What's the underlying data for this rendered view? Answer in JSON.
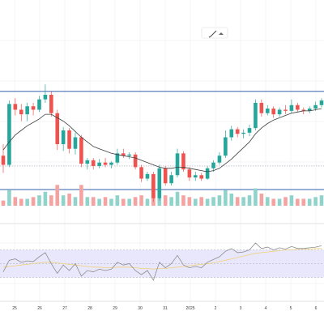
{
  "toolbar": {
    "icons": [
      "pencil-icon",
      "caret-up-icon"
    ]
  },
  "colors": {
    "up": "#26a69a",
    "down": "#ef5350",
    "up_volume": "#8fd3cb",
    "down_volume": "#f5a3a1",
    "range_line": "#5b7fbd",
    "moving_average": "#3f3f3f",
    "rsi_line": "#8e8e8e",
    "rsi_ma": "#f0d27a",
    "rsi_band": "#e9e7fb",
    "grid": "#eeeeee"
  },
  "x_axis": {
    "labels": [
      "25",
      "26",
      "27",
      "28",
      "29",
      "30",
      "31",
      "2025",
      "2",
      "3",
      "4",
      "5",
      "6"
    ]
  },
  "chart_data": {
    "type": "candlestick",
    "title": "",
    "xlabel": "",
    "ylabel": "",
    "grid": true,
    "annotations": [
      "upper range line",
      "lower range line",
      "dotted support line"
    ],
    "candles": [
      {
        "o": 36,
        "h": 37,
        "l": 34.5,
        "c": 35.2
      },
      {
        "o": 35.2,
        "h": 40.8,
        "l": 35,
        "c": 40.5
      },
      {
        "o": 40.5,
        "h": 41,
        "l": 39.5,
        "c": 40
      },
      {
        "o": 40,
        "h": 40.5,
        "l": 39,
        "c": 39.6
      },
      {
        "o": 39.6,
        "h": 40.6,
        "l": 39,
        "c": 40.3
      },
      {
        "o": 40.3,
        "h": 40.6,
        "l": 39.5,
        "c": 40
      },
      {
        "o": 40,
        "h": 41.2,
        "l": 39.8,
        "c": 40.9
      },
      {
        "o": 40.9,
        "h": 42.2,
        "l": 40.6,
        "c": 41.3
      },
      {
        "o": 41.3,
        "h": 41.6,
        "l": 39.4,
        "c": 39.7
      },
      {
        "o": 39.7,
        "h": 40,
        "l": 36.5,
        "c": 37
      },
      {
        "o": 37,
        "h": 38.5,
        "l": 36.4,
        "c": 38.2
      },
      {
        "o": 38.2,
        "h": 38.4,
        "l": 36.2,
        "c": 36.6
      },
      {
        "o": 36.6,
        "h": 38,
        "l": 36.1,
        "c": 37.6
      },
      {
        "o": 37.6,
        "h": 37.8,
        "l": 35,
        "c": 35.3
      },
      {
        "o": 35.3,
        "h": 35.8,
        "l": 34.8,
        "c": 35.6
      },
      {
        "o": 35.6,
        "h": 35.8,
        "l": 34.8,
        "c": 35.1
      },
      {
        "o": 35.1,
        "h": 35.7,
        "l": 34.9,
        "c": 35.4
      },
      {
        "o": 35.4,
        "h": 35.8,
        "l": 35,
        "c": 35.2
      },
      {
        "o": 35.2,
        "h": 35.5,
        "l": 34.9,
        "c": 35.4
      },
      {
        "o": 35.4,
        "h": 36.6,
        "l": 35.2,
        "c": 36.2
      },
      {
        "o": 36.2,
        "h": 36.6,
        "l": 35.8,
        "c": 36
      },
      {
        "o": 36,
        "h": 36.3,
        "l": 35.7,
        "c": 36.1
      },
      {
        "o": 36.1,
        "h": 36.3,
        "l": 34.8,
        "c": 35
      },
      {
        "o": 35,
        "h": 35.2,
        "l": 33.7,
        "c": 34
      },
      {
        "o": 34,
        "h": 34.6,
        "l": 33.8,
        "c": 34.4
      },
      {
        "o": 34.4,
        "h": 34.6,
        "l": 32,
        "c": 32.3
      },
      {
        "o": 32.3,
        "h": 35.2,
        "l": 32.1,
        "c": 34.9
      },
      {
        "o": 34.9,
        "h": 35.1,
        "l": 33.4,
        "c": 33.6
      },
      {
        "o": 33.6,
        "h": 34.6,
        "l": 33.4,
        "c": 34.3
      },
      {
        "o": 34.3,
        "h": 36.6,
        "l": 34.1,
        "c": 36.2
      },
      {
        "o": 36.2,
        "h": 36.4,
        "l": 34.6,
        "c": 34.8
      },
      {
        "o": 34.8,
        "h": 35,
        "l": 33.8,
        "c": 34.1
      },
      {
        "o": 34.1,
        "h": 34.6,
        "l": 33.8,
        "c": 34.3
      },
      {
        "o": 34.3,
        "h": 34.5,
        "l": 33.8,
        "c": 34
      },
      {
        "o": 34,
        "h": 35.1,
        "l": 33.9,
        "c": 34.9
      },
      {
        "o": 34.9,
        "h": 35.6,
        "l": 34.6,
        "c": 35.4
      },
      {
        "o": 35.4,
        "h": 36.3,
        "l": 35.2,
        "c": 36
      },
      {
        "o": 36,
        "h": 38.2,
        "l": 35.8,
        "c": 37.6
      },
      {
        "o": 37.6,
        "h": 38.6,
        "l": 37.3,
        "c": 38.3
      },
      {
        "o": 38.3,
        "h": 38.5,
        "l": 37.6,
        "c": 37.9
      },
      {
        "o": 37.9,
        "h": 38.3,
        "l": 37.5,
        "c": 38
      },
      {
        "o": 38,
        "h": 38.7,
        "l": 37.7,
        "c": 38.4
      },
      {
        "o": 38.4,
        "h": 40.9,
        "l": 38.2,
        "c": 40.6
      },
      {
        "o": 40.6,
        "h": 40.9,
        "l": 39.4,
        "c": 39.7
      },
      {
        "o": 39.7,
        "h": 40.4,
        "l": 39.5,
        "c": 40.1
      },
      {
        "o": 40.1,
        "h": 40.3,
        "l": 39.3,
        "c": 39.6
      },
      {
        "o": 39.6,
        "h": 40.2,
        "l": 39.4,
        "c": 40
      },
      {
        "o": 40,
        "h": 40.4,
        "l": 39.6,
        "c": 39.9
      },
      {
        "o": 39.9,
        "h": 40.9,
        "l": 39.7,
        "c": 40.4
      },
      {
        "o": 40.4,
        "h": 40.6,
        "l": 39.8,
        "c": 40
      },
      {
        "o": 40,
        "h": 40.2,
        "l": 39.6,
        "c": 39.9
      },
      {
        "o": 39.9,
        "h": 40.3,
        "l": 39.7,
        "c": 40.1
      },
      {
        "o": 40.1,
        "h": 40.7,
        "l": 39.9,
        "c": 40.4
      },
      {
        "o": 40.4,
        "h": 41,
        "l": 40.2,
        "c": 40.8
      }
    ],
    "moving_average": [
      36.5,
      37.2,
      37.8,
      38.2,
      38.6,
      38.9,
      39.2,
      39.6,
      39.6,
      39.3,
      39,
      38.6,
      38.1,
      37.6,
      37.2,
      36.8,
      36.6,
      36.4,
      36.2,
      36.1,
      36,
      35.9,
      35.8,
      35.6,
      35.4,
      35.2,
      35,
      34.9,
      34.9,
      35,
      35,
      34.9,
      34.8,
      34.7,
      34.6,
      34.7,
      34.9,
      35.3,
      35.7,
      36.2,
      36.7,
      37.2,
      37.9,
      38.4,
      38.8,
      39.1,
      39.3,
      39.5,
      39.7,
      39.8,
      39.9,
      39.9,
      40,
      40.1
    ],
    "ylim": [
      31.5,
      42.5
    ],
    "range_levels": {
      "upper": 41.6,
      "lower": 35.1
    },
    "volume": [
      3,
      9,
      5,
      4,
      4,
      5,
      6,
      8,
      6,
      12,
      6,
      7,
      5,
      12,
      5,
      5,
      4,
      5,
      4,
      6,
      4,
      4,
      5,
      6,
      4,
      14,
      9,
      6,
      5,
      8,
      6,
      5,
      4,
      5,
      4,
      5,
      6,
      9,
      7,
      5,
      5,
      6,
      10,
      7,
      5,
      4,
      4,
      5,
      6,
      4,
      4,
      4,
      5,
      6
    ],
    "rsi": [
      38,
      55,
      57,
      52,
      54,
      53,
      60,
      66,
      50,
      36,
      48,
      40,
      50,
      32,
      40,
      38,
      42,
      40,
      42,
      52,
      48,
      50,
      40,
      34,
      40,
      26,
      52,
      44,
      50,
      62,
      48,
      44,
      46,
      44,
      52,
      56,
      60,
      68,
      72,
      66,
      67,
      70,
      80,
      72,
      74,
      70,
      73,
      71,
      75,
      72,
      72,
      73,
      74,
      76
    ],
    "rsi_ma": [
      45,
      46,
      47,
      48,
      49,
      50,
      51,
      52,
      52,
      51,
      50,
      49,
      48,
      47,
      46,
      45,
      45,
      44,
      44,
      45,
      45,
      45,
      44,
      43,
      43,
      42,
      43,
      43,
      44,
      45,
      46,
      47,
      48,
      49,
      50,
      51,
      53,
      55,
      57,
      59,
      61,
      63,
      65,
      66,
      67,
      68,
      69,
      70,
      70,
      71,
      71,
      71,
      72,
      72
    ],
    "rsi_range": [
      0,
      100
    ],
    "rsi_bands": {
      "upper": 70,
      "middle": 50,
      "lower": 30
    }
  }
}
